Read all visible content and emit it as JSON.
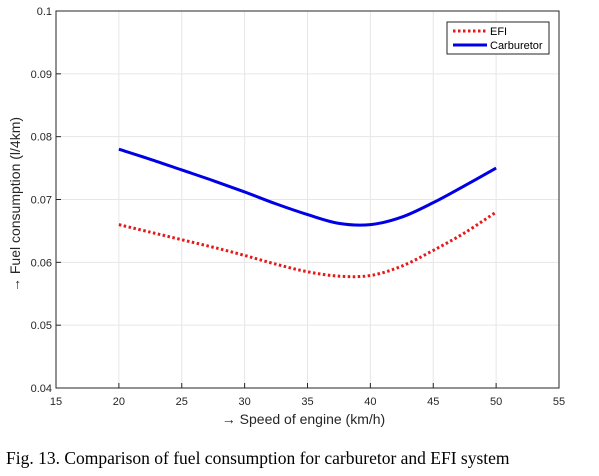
{
  "chart_data": {
    "type": "line",
    "xlabel": "→ Speed of engine (km/h)",
    "ylabel": "→ Fuel consumption (l/4km)",
    "xlim": [
      15,
      55
    ],
    "ylim": [
      0.04,
      0.1
    ],
    "xticks": [
      15,
      20,
      25,
      30,
      35,
      40,
      45,
      50,
      55
    ],
    "yticks": [
      0.04,
      0.05,
      0.06,
      0.07,
      0.08,
      0.09,
      0.1
    ],
    "xtick_labels": [
      "15",
      "20",
      "25",
      "30",
      "35",
      "40",
      "45",
      "50",
      "55"
    ],
    "ytick_labels": [
      "0.04",
      "0.05",
      "0.06",
      "0.07",
      "0.08",
      "0.09",
      "0.1"
    ],
    "grid": true,
    "legend_position": "top-right",
    "series": [
      {
        "name": "EFI",
        "color": "#e6191a",
        "style": "dotted",
        "x": [
          20,
          22.5,
          25,
          27.5,
          30,
          32.5,
          35,
          37.5,
          40,
          42.5,
          45,
          47.5,
          50
        ],
        "y": [
          0.066,
          0.0648,
          0.0636,
          0.0624,
          0.0611,
          0.0597,
          0.0585,
          0.0578,
          0.0579,
          0.0594,
          0.0619,
          0.0647,
          0.068
        ]
      },
      {
        "name": "Carburetor",
        "color": "#0000e6",
        "style": "solid",
        "x": [
          20,
          22.5,
          25,
          27.5,
          30,
          32.5,
          35,
          37.5,
          40,
          42.5,
          45,
          47.5,
          50
        ],
        "y": [
          0.078,
          0.0764,
          0.0747,
          0.073,
          0.0712,
          0.0693,
          0.0676,
          0.0662,
          0.066,
          0.0672,
          0.0695,
          0.0722,
          0.075
        ]
      }
    ]
  },
  "caption": "Fig. 13.  Comparison of fuel consumption for carburetor and EFI system"
}
